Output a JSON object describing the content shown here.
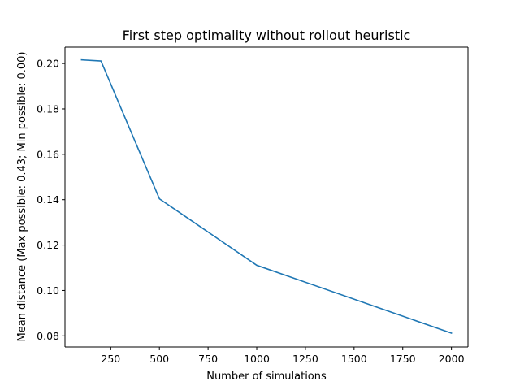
{
  "chart_data": {
    "type": "line",
    "title": "First step optimality without rollout heuristic",
    "xlabel": "Number of simulations",
    "ylabel": "Mean distance (Max possible: 0.43; Min possible: 0.00)",
    "xlim": [
      15,
      2085
    ],
    "ylim": [
      0.0751,
      0.2072
    ],
    "xticks": [
      250,
      500,
      750,
      1000,
      1250,
      1500,
      1750,
      2000
    ],
    "xtick_labels": [
      "250",
      "500",
      "750",
      "1000",
      "1250",
      "1500",
      "1750",
      "2000"
    ],
    "yticks": [
      0.08,
      0.1,
      0.12,
      0.14,
      0.16,
      0.18,
      0.2
    ],
    "ytick_labels": [
      "0.08",
      "0.10",
      "0.12",
      "0.14",
      "0.16",
      "0.18",
      "0.20"
    ],
    "grid": false,
    "legend": "none",
    "series": [
      {
        "x": [
          100,
          200,
          500,
          1000,
          2000
        ],
        "y": [
          0.2016,
          0.2011,
          0.1404,
          0.1111,
          0.0812
        ],
        "color": "#1f77b4"
      }
    ]
  }
}
